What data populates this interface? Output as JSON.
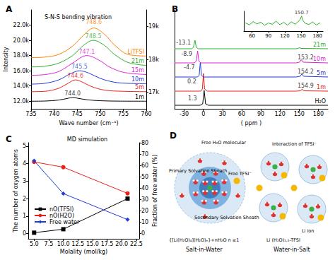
{
  "chart_data": [
    {
      "label": "A",
      "type": "line",
      "title": "S-N-S bending vibration",
      "x_label": "Wave number (cm⁻¹)",
      "y_label": "Intensity",
      "xlim": [
        735,
        760
      ],
      "xticks": [
        735,
        740,
        745,
        750,
        755,
        760
      ],
      "ylim": [
        11000,
        24000
      ],
      "yticks": [
        {
          "value": 12000,
          "label": "12.0k"
        },
        {
          "value": 14000,
          "label": "14.0k"
        },
        {
          "value": 16000,
          "label": "16.0k"
        },
        {
          "value": 18000,
          "label": "18.0k"
        },
        {
          "value": 20000,
          "label": "20.0k"
        },
        {
          "value": 22000,
          "label": "22.0k"
        }
      ],
      "y2lim": [
        16500,
        19500
      ],
      "y2ticks": [
        {
          "value": 17000,
          "label": "17k"
        },
        {
          "value": 18000,
          "label": "18k"
        },
        {
          "value": 19000,
          "label": "19k"
        }
      ],
      "grid": false,
      "series": [
        {
          "name": "1m",
          "color": "#000000",
          "x": [
            735,
            738,
            741,
            743,
            744,
            745,
            747,
            750,
            754,
            760
          ],
          "values": [
            12000,
            12020,
            12150,
            12380,
            12480,
            12400,
            12200,
            12060,
            12010,
            12000
          ]
        },
        {
          "name": "5m",
          "color": "#e8201b",
          "x": [
            735,
            738,
            741,
            743,
            744.6,
            746,
            748,
            751,
            755,
            760
          ],
          "values": [
            13250,
            13300,
            13700,
            14350,
            14800,
            14550,
            13950,
            13450,
            13300,
            13250
          ]
        },
        {
          "name": "10m",
          "color": "#1f3bd8",
          "x": [
            735,
            738,
            741,
            743.5,
            745.5,
            747.5,
            750,
            753,
            756,
            760
          ],
          "values": [
            14250,
            14350,
            14800,
            15600,
            16000,
            15700,
            15000,
            14500,
            14350,
            14300
          ]
        },
        {
          "name": "15m",
          "color": "#e020d8",
          "x": [
            735,
            738,
            741,
            744,
            747.1,
            750,
            752,
            755,
            760
          ],
          "values": [
            15400,
            15500,
            15900,
            17000,
            18000,
            17300,
            16500,
            15800,
            15500
          ]
        },
        {
          "name": "21m",
          "color": "#2bb02b",
          "x": [
            735,
            738,
            741,
            744,
            746.5,
            748.5,
            751,
            753,
            756,
            760
          ],
          "values": [
            16500,
            16600,
            17000,
            18000,
            19400,
            20000,
            19300,
            18200,
            17100,
            16700
          ]
        },
        {
          "name": "LiTFSI",
          "color": "#ff7f00",
          "axis": "y2",
          "x": [
            735,
            738,
            741,
            744,
            746.5,
            748.6,
            751,
            753,
            756,
            760
          ],
          "values": [
            18050,
            18070,
            18150,
            18400,
            18750,
            18950,
            18750,
            18450,
            18150,
            18100
          ]
        }
      ],
      "annotations": [
        {
          "text": "748.6",
          "x": 748.6,
          "y": 22400,
          "color": "#ff7f00"
        },
        {
          "text": "748.5",
          "x": 748.5,
          "y": 20500,
          "color": "#2bb02b"
        },
        {
          "text": "747.1",
          "x": 747.1,
          "y": 18500,
          "color": "#e020d8"
        },
        {
          "text": "745.5",
          "x": 745.5,
          "y": 16500,
          "color": "#1f3bd8"
        },
        {
          "text": "744.6",
          "x": 744.6,
          "y": 15300,
          "color": "#e8201b"
        },
        {
          "text": "744.0",
          "x": 744.0,
          "y": 13000,
          "color": "#000000"
        }
      ]
    },
    {
      "label": "B",
      "type": "line",
      "x_label": "( ppm )",
      "xlim": [
        -45,
        195
      ],
      "xticks": [
        -30,
        0,
        30,
        60,
        90,
        120,
        150,
        180
      ],
      "ylim": [
        0,
        14
      ],
      "tick_labels": "x",
      "grid": false,
      "series": [
        {
          "name": "H₂O",
          "color": "#000000",
          "x": [
            -45,
            -5,
            -1,
            1.3,
            3.5,
            8,
            195
          ],
          "values": [
            0.5,
            0.5,
            0.7,
            2.6,
            0.7,
            0.5,
            0.5
          ]
        },
        {
          "name": "1m",
          "color": "#e8201b",
          "x": [
            -45,
            -4,
            -1.5,
            0.2,
            2,
            6,
            145,
            152,
            154.9,
            157,
            195
          ],
          "values": [
            2.5,
            2.5,
            2.8,
            5.0,
            2.8,
            2.5,
            2.5,
            2.55,
            2.8,
            2.55,
            2.5
          ]
        },
        {
          "name": "5m",
          "color": "#1f3bd8",
          "x": [
            -45,
            -9,
            -6.5,
            -4.7,
            -3,
            0,
            145,
            151.5,
            154.2,
            157,
            195
          ],
          "values": [
            4.5,
            4.5,
            4.75,
            6.6,
            4.75,
            4.5,
            4.5,
            4.6,
            4.95,
            4.6,
            4.5
          ]
        },
        {
          "name": "10m",
          "color": "#e020d8",
          "x": [
            -45,
            -14,
            -11,
            -8.9,
            -7,
            -4,
            145,
            150.5,
            153.2,
            156,
            195
          ],
          "values": [
            6.5,
            6.5,
            6.75,
            8.2,
            6.75,
            6.5,
            6.5,
            6.6,
            6.95,
            6.6,
            6.5
          ]
        },
        {
          "name": "21m",
          "color": "#2bb02b",
          "x": [
            -45,
            -18,
            -15.5,
            -13.1,
            -11,
            -8,
            145,
            148,
            150.7,
            153,
            195
          ],
          "values": [
            8.5,
            8.5,
            8.7,
            9.7,
            8.7,
            8.5,
            8.5,
            8.55,
            8.65,
            8.55,
            8.5
          ]
        }
      ],
      "annotations": [
        {
          "text": "1.3",
          "x": -17,
          "y": 1.5,
          "color": "#000000"
        },
        {
          "text": "0.2",
          "x": -18,
          "y": 3.9,
          "color": "#000000"
        },
        {
          "text": "-4.7",
          "x": -22,
          "y": 5.9,
          "color": "#000000"
        },
        {
          "text": "-8.9",
          "x": -26,
          "y": 7.8,
          "color": "#000000"
        },
        {
          "text": "-13.1",
          "x": -31,
          "y": 9.4,
          "color": "#000000"
        },
        {
          "text": "154.9",
          "x": 160,
          "y": 3.3,
          "color": "#000000"
        },
        {
          "text": "154.2",
          "x": 160,
          "y": 5.3,
          "color": "#000000"
        },
        {
          "text": "153.2",
          "x": 160,
          "y": 7.3,
          "color": "#000000"
        }
      ]
    },
    {
      "type": "line",
      "xlim": [
        45,
        190
      ],
      "xticks": [
        60,
        90,
        120,
        150,
        180
      ],
      "ylim": [
        0,
        10
      ],
      "tick_labels": "x",
      "grid": false,
      "series": [
        {
          "color": "#2bb02b",
          "x": [
            48,
            55,
            62,
            69,
            76,
            83,
            90,
            97,
            104,
            111,
            118,
            125,
            132,
            139,
            144,
            148,
            150.7,
            153,
            157,
            164,
            171,
            178,
            185
          ],
          "values": [
            4.2,
            3.1,
            4.8,
            3.6,
            4.5,
            2.9,
            4.1,
            3.4,
            5.0,
            3.2,
            4.4,
            3.0,
            4.7,
            3.5,
            4.6,
            5.8,
            7.6,
            5.5,
            4.0,
            3.3,
            4.6,
            3.1,
            4.2
          ]
        }
      ],
      "annotations": [
        {
          "text": "150.7",
          "x": 150.7,
          "y": 9.2,
          "color": "#000000"
        }
      ]
    },
    {
      "label": "C",
      "type": "line",
      "title": "MD simulation",
      "x_label": "Molality (mol/kg)",
      "y_label": "The number of oxygen atoms",
      "y2_label": "Fraction of free water (%)",
      "xlim": [
        4,
        23
      ],
      "xticks": [
        {
          "value": 5,
          "label": "5.0"
        },
        7.5,
        {
          "value": 10,
          "label": "10.0"
        },
        12.5,
        {
          "value": 15,
          "label": "15.0"
        },
        17.5,
        {
          "value": 20,
          "label": "20.0"
        },
        22.5
      ],
      "ylim": [
        -0.3,
        5.2
      ],
      "yticks": [
        0,
        1,
        2,
        3,
        4,
        5
      ],
      "y2lim": [
        -5,
        80
      ],
      "y2ticks": [
        0,
        10,
        20,
        30,
        40,
        50,
        60,
        70,
        80
      ],
      "grid": false,
      "legend": "lower left",
      "x": [
        5,
        10,
        21
      ],
      "series": [
        {
          "name": "nO(TFSI)",
          "color": "#000000",
          "marker": "square",
          "values": [
            0.05,
            0.25,
            2.0
          ]
        },
        {
          "name": "nO(H2O)",
          "color": "#e8201b",
          "marker": "circle",
          "values": [
            4.1,
            3.8,
            2.3
          ]
        },
        {
          "name": "Free water",
          "color": "#1f3bd8",
          "marker": "diamond",
          "axis": "y2",
          "values": [
            64,
            35,
            12
          ]
        }
      ]
    }
  ],
  "diagram": {
    "label": "D",
    "salt_in_water": {
      "free_water": "Free H₂O molecular",
      "primary": "Primary Solvation Sheath",
      "free_anion": "Free TFSI⁻",
      "secondary": "Secondary Solvation Sheath",
      "formula": "{[Li(H₂O)₄](H₂O)ₙ}+nH₂O n ≥1",
      "title": "Salt-in-Water"
    },
    "water_in_salt": {
      "interaction": "Interaction of TFSI⁻",
      "li_ion": "Li ion",
      "formula": "Li (H₂O)₂.₅-TFSI",
      "title": "Water-in-Salt"
    }
  }
}
